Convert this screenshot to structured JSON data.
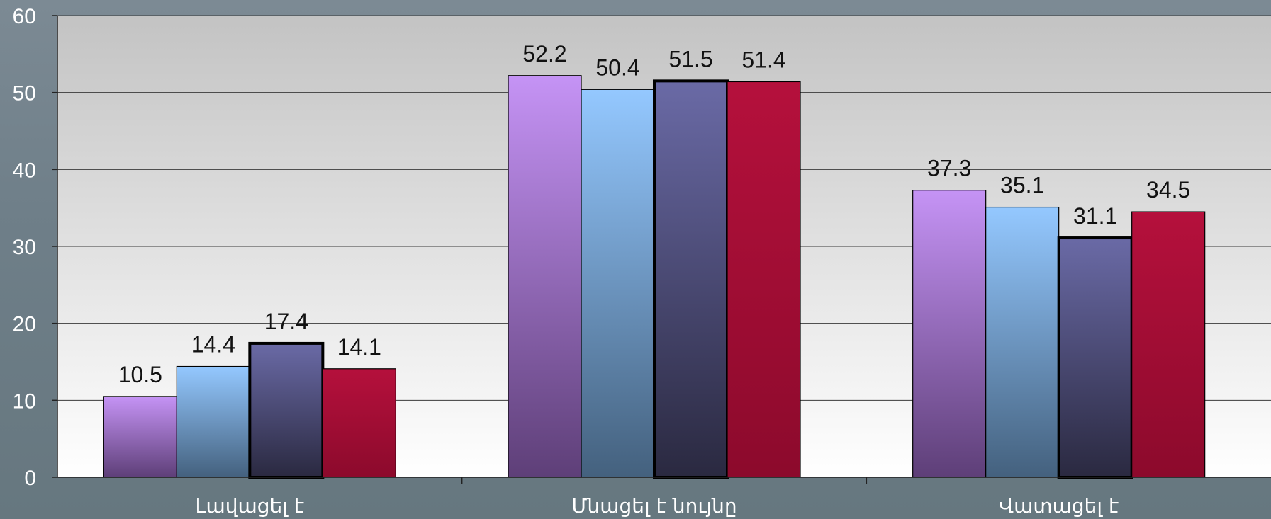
{
  "chart_data": {
    "type": "bar",
    "title": "",
    "xlabel": "",
    "ylabel": "",
    "ylim": [
      0,
      60
    ],
    "yticks": [
      0,
      10,
      20,
      30,
      40,
      50,
      60
    ],
    "grid": true,
    "legend": "none",
    "categories": [
      "Լավացել է",
      "Մնացել է նույնը",
      "Վատացել է"
    ],
    "series": [
      {
        "values": [
          10.5,
          52.2,
          37.3
        ],
        "color": "#c593f5",
        "color_dark": "#5e3f78",
        "border": "thin"
      },
      {
        "values": [
          14.4,
          50.4,
          35.1
        ],
        "color": "#94c8ff",
        "color_dark": "#44617e",
        "border": "thin"
      },
      {
        "values": [
          17.4,
          51.5,
          31.1
        ],
        "color": "#6a6aa6",
        "color_dark": "#2a2940",
        "border": "thick"
      },
      {
        "values": [
          14.1,
          51.4,
          34.5
        ],
        "color": "#b5103c",
        "color_dark": "#8c0a2c",
        "border": "thin"
      }
    ]
  }
}
